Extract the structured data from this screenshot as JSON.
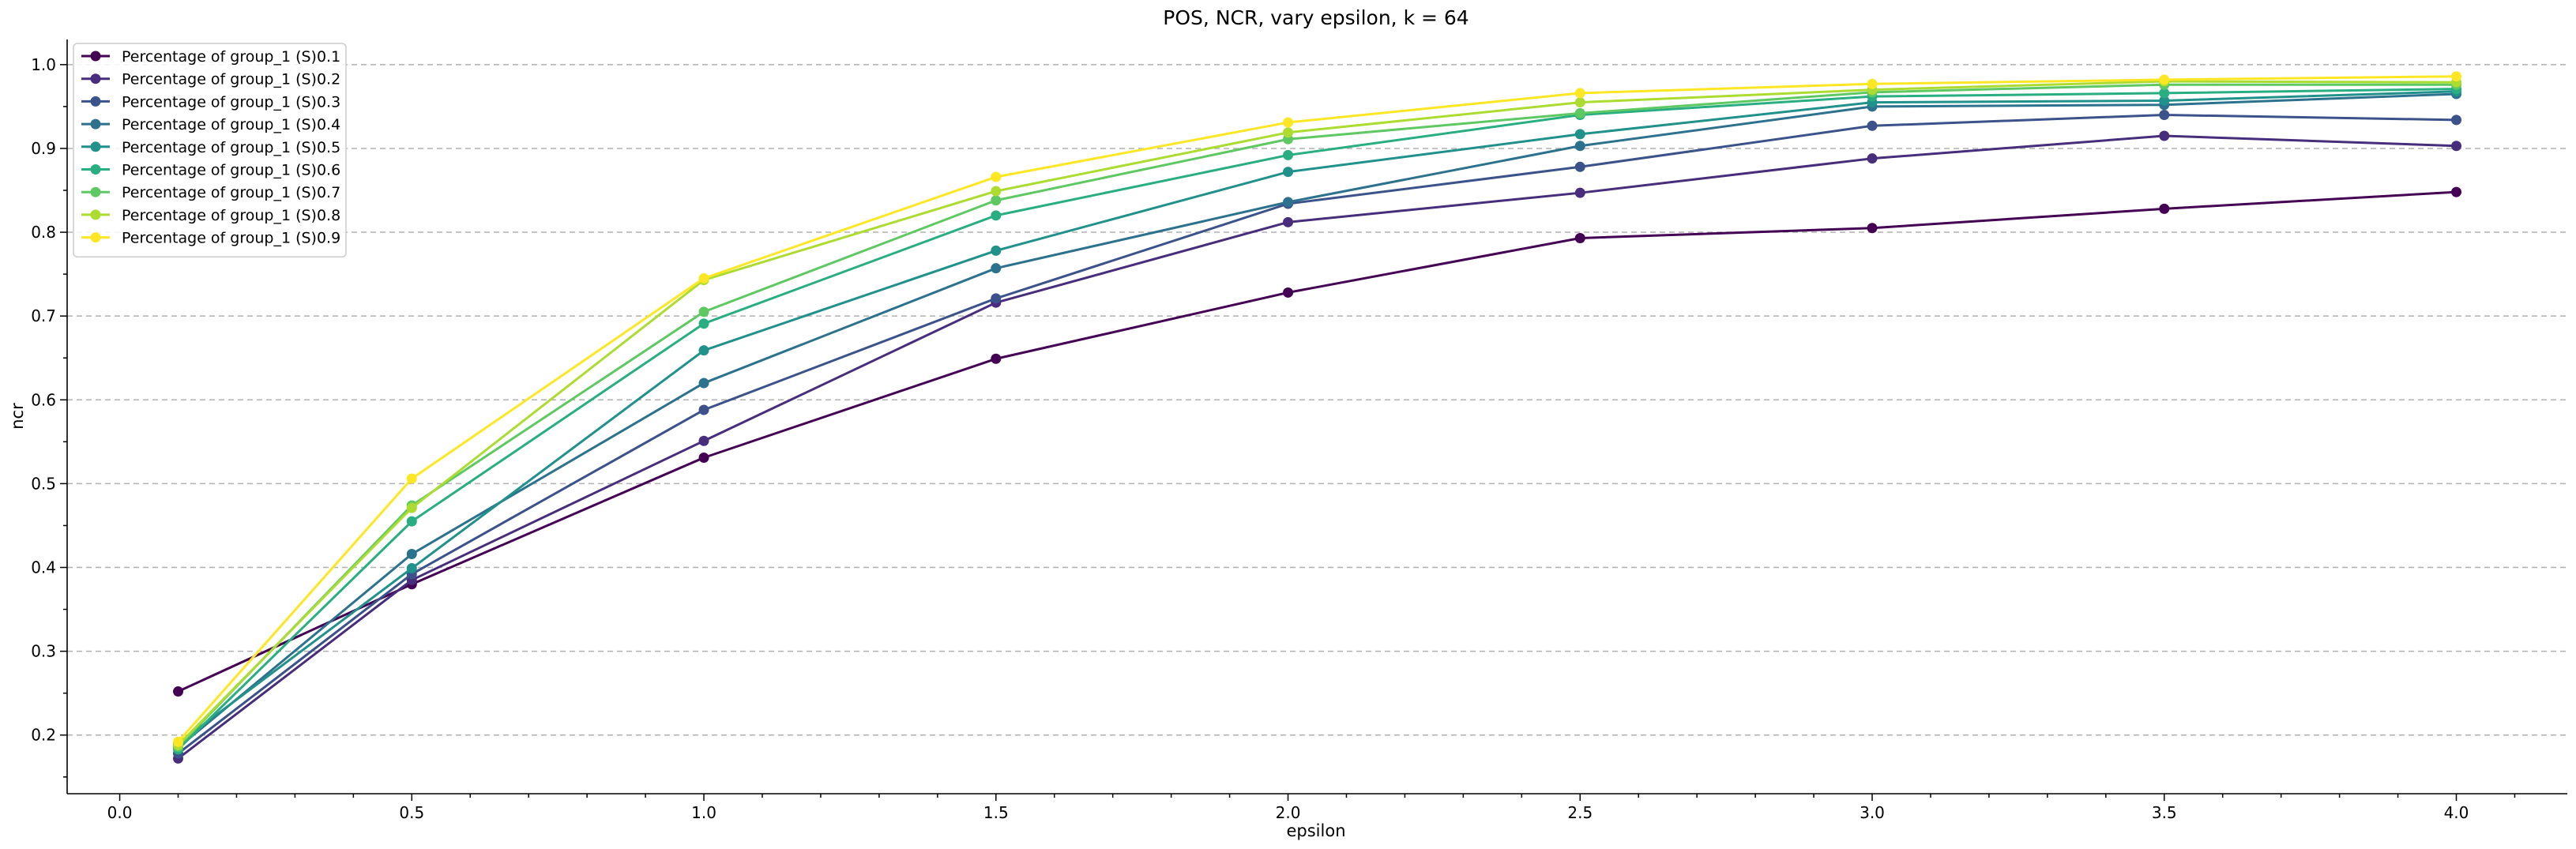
{
  "chart_data": {
    "type": "line",
    "title": "POS, NCR, vary epsilon, k = 64",
    "xlabel": "epsilon",
    "ylabel": "ncr",
    "x": [
      0.1,
      0.5,
      1.0,
      1.5,
      2.0,
      2.5,
      3.0,
      3.5,
      4.0
    ],
    "xlim": [
      -0.09,
      4.19
    ],
    "ylim": [
      0.13,
      1.03
    ],
    "x_ticks": [
      "0.0",
      "0.5",
      "1.0",
      "1.5",
      "2.0",
      "2.5",
      "3.0",
      "3.5",
      "4.0"
    ],
    "y_ticks": [
      "0.2",
      "0.3",
      "0.4",
      "0.5",
      "0.6",
      "0.7",
      "0.8",
      "0.9",
      "1.0"
    ],
    "grid": "horizontal dashed",
    "legend_position": "top-left",
    "series": [
      {
        "name": "Percentage of group_1 (S)0.1",
        "color": "#440154",
        "values": [
          0.252,
          0.38,
          0.531,
          0.649,
          0.728,
          0.793,
          0.805,
          0.828,
          0.848
        ]
      },
      {
        "name": "Percentage of group_1 (S)0.2",
        "color": "#472d7b",
        "values": [
          0.172,
          0.385,
          0.551,
          0.716,
          0.812,
          0.847,
          0.888,
          0.915,
          0.903
        ]
      },
      {
        "name": "Percentage of group_1 (S)0.3",
        "color": "#3b528b",
        "values": [
          0.178,
          0.392,
          0.588,
          0.721,
          0.834,
          0.878,
          0.927,
          0.94,
          0.934
        ]
      },
      {
        "name": "Percentage of group_1 (S)0.4",
        "color": "#2c728e",
        "values": [
          0.185,
          0.416,
          0.62,
          0.757,
          0.836,
          0.903,
          0.95,
          0.952,
          0.965
        ]
      },
      {
        "name": "Percentage of group_1 (S)0.5",
        "color": "#21918c",
        "values": [
          0.19,
          0.399,
          0.659,
          0.778,
          0.872,
          0.917,
          0.955,
          0.957,
          0.968
        ]
      },
      {
        "name": "Percentage of group_1 (S)0.6",
        "color": "#28ae80",
        "values": [
          0.183,
          0.455,
          0.691,
          0.82,
          0.892,
          0.94,
          0.962,
          0.966,
          0.971
        ]
      },
      {
        "name": "Percentage of group_1 (S)0.7",
        "color": "#5ec962",
        "values": [
          0.186,
          0.474,
          0.705,
          0.838,
          0.911,
          0.942,
          0.967,
          0.976,
          0.976
        ]
      },
      {
        "name": "Percentage of group_1 (S)0.8",
        "color": "#addc30",
        "values": [
          0.188,
          0.471,
          0.743,
          0.849,
          0.919,
          0.955,
          0.97,
          0.98,
          0.979
        ]
      },
      {
        "name": "Percentage of group_1 (S)0.9",
        "color": "#fde725",
        "values": [
          0.192,
          0.506,
          0.745,
          0.866,
          0.931,
          0.966,
          0.977,
          0.982,
          0.986
        ]
      }
    ]
  }
}
